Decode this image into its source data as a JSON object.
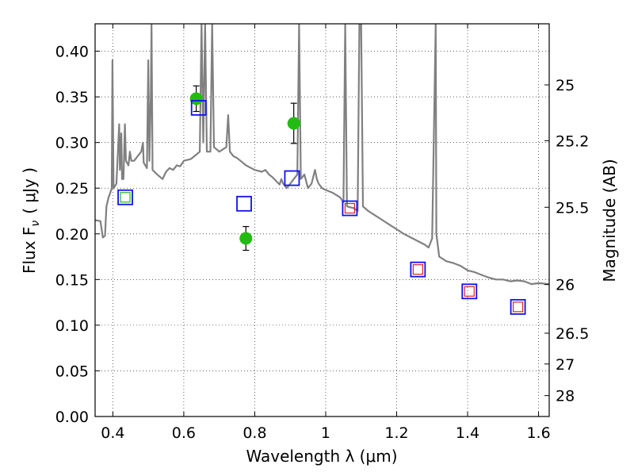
{
  "chart_data": {
    "type": "scatter",
    "xlabel": "Wavelength  λ (μm)",
    "ylabel": "Flux  F",
    "ylabel_subscript": "ν",
    "ylabel_unit": "( μJy )",
    "y2label": "Magnitude (AB)",
    "xlim": [
      0.35,
      1.63
    ],
    "ylim": [
      0.0,
      0.43
    ],
    "x_ticks": [
      0.4,
      0.6,
      0.8,
      1.0,
      1.2,
      1.4,
      1.6
    ],
    "x_tick_labels": [
      "0.4",
      "0.6",
      "0.8",
      "1",
      "1.2",
      "1.4",
      "1.6"
    ],
    "y_ticks": [
      0.0,
      0.05,
      0.1,
      0.15,
      0.2,
      0.25,
      0.3,
      0.35,
      0.4
    ],
    "y_tick_labels": [
      "0.00",
      "0.05",
      "0.10",
      "0.15",
      "0.20",
      "0.25",
      "0.30",
      "0.35",
      "0.40"
    ],
    "y2_ticks": [
      {
        "label": "25",
        "flux": 0.3631
      },
      {
        "label": "25.2",
        "flux": 0.302
      },
      {
        "label": "25.5",
        "flux": 0.2291
      },
      {
        "label": "26",
        "flux": 0.1445
      },
      {
        "label": "26.5",
        "flux": 0.0912
      },
      {
        "label": "27",
        "flux": 0.0575
      },
      {
        "label": "28",
        "flux": 0.0229
      }
    ],
    "grid": true,
    "series": [
      {
        "kind": "line",
        "color": "#808080",
        "points": [
          [
            0.35,
            0.215
          ],
          [
            0.365,
            0.214
          ],
          [
            0.372,
            0.196
          ],
          [
            0.378,
            0.198
          ],
          [
            0.382,
            0.23
          ],
          [
            0.388,
            0.24
          ],
          [
            0.393,
            0.245
          ],
          [
            0.397,
            0.25
          ],
          [
            0.399,
            0.39
          ],
          [
            0.402,
            0.25
          ],
          [
            0.41,
            0.255
          ],
          [
            0.418,
            0.32
          ],
          [
            0.42,
            0.27
          ],
          [
            0.424,
            0.31
          ],
          [
            0.426,
            0.26
          ],
          [
            0.43,
            0.26
          ],
          [
            0.434,
            0.32
          ],
          [
            0.437,
            0.28
          ],
          [
            0.444,
            0.275
          ],
          [
            0.448,
            0.29
          ],
          [
            0.452,
            0.28
          ],
          [
            0.46,
            0.28
          ],
          [
            0.47,
            0.285
          ],
          [
            0.48,
            0.29
          ],
          [
            0.485,
            0.3
          ],
          [
            0.487,
            0.278
          ],
          [
            0.496,
            0.272
          ],
          [
            0.5,
            0.39
          ],
          [
            0.503,
            0.28
          ],
          [
            0.507,
            0.35
          ],
          [
            0.509,
            0.43
          ],
          [
            0.512,
            0.27
          ],
          [
            0.525,
            0.265
          ],
          [
            0.54,
            0.26
          ],
          [
            0.55,
            0.268
          ],
          [
            0.56,
            0.272
          ],
          [
            0.57,
            0.27
          ],
          [
            0.58,
            0.275
          ],
          [
            0.59,
            0.274
          ],
          [
            0.6,
            0.28
          ],
          [
            0.62,
            0.282
          ],
          [
            0.63,
            0.285
          ],
          [
            0.645,
            0.29
          ],
          [
            0.65,
            0.43
          ],
          [
            0.655,
            0.3
          ],
          [
            0.66,
            0.43
          ],
          [
            0.665,
            0.29
          ],
          [
            0.675,
            0.29
          ],
          [
            0.68,
            0.43
          ],
          [
            0.685,
            0.295
          ],
          [
            0.7,
            0.29
          ],
          [
            0.72,
            0.295
          ],
          [
            0.725,
            0.33
          ],
          [
            0.73,
            0.29
          ],
          [
            0.74,
            0.285
          ],
          [
            0.75,
            0.283
          ],
          [
            0.76,
            0.28
          ],
          [
            0.775,
            0.275
          ],
          [
            0.8,
            0.27
          ],
          [
            0.82,
            0.268
          ],
          [
            0.83,
            0.27
          ],
          [
            0.84,
            0.265
          ],
          [
            0.85,
            0.262
          ],
          [
            0.86,
            0.258
          ],
          [
            0.87,
            0.254
          ],
          [
            0.875,
            0.26
          ],
          [
            0.88,
            0.255
          ],
          [
            0.89,
            0.25
          ],
          [
            0.9,
            0.255
          ],
          [
            0.91,
            0.26
          ],
          [
            0.92,
            0.265
          ],
          [
            0.925,
            0.43
          ],
          [
            0.93,
            0.26
          ],
          [
            0.94,
            0.265
          ],
          [
            0.95,
            0.25
          ],
          [
            0.96,
            0.255
          ],
          [
            0.97,
            0.27
          ],
          [
            0.975,
            0.26
          ],
          [
            0.98,
            0.255
          ],
          [
            0.99,
            0.25
          ],
          [
            1.0,
            0.248
          ],
          [
            1.02,
            0.245
          ],
          [
            1.04,
            0.24
          ],
          [
            1.05,
            0.235
          ],
          [
            1.055,
            0.43
          ],
          [
            1.06,
            0.23
          ],
          [
            1.08,
            0.228
          ],
          [
            1.09,
            0.225
          ],
          [
            1.095,
            0.43
          ],
          [
            1.1,
            0.43
          ],
          [
            1.105,
            0.23
          ],
          [
            1.12,
            0.225
          ],
          [
            1.14,
            0.22
          ],
          [
            1.16,
            0.215
          ],
          [
            1.18,
            0.21
          ],
          [
            1.2,
            0.205
          ],
          [
            1.22,
            0.2
          ],
          [
            1.24,
            0.196
          ],
          [
            1.26,
            0.192
          ],
          [
            1.28,
            0.188
          ],
          [
            1.29,
            0.185
          ],
          [
            1.3,
            0.195
          ],
          [
            1.31,
            0.43
          ],
          [
            1.312,
            0.2
          ],
          [
            1.32,
            0.175
          ],
          [
            1.34,
            0.17
          ],
          [
            1.36,
            0.168
          ],
          [
            1.38,
            0.165
          ],
          [
            1.4,
            0.16
          ],
          [
            1.42,
            0.158
          ],
          [
            1.44,
            0.155
          ],
          [
            1.46,
            0.152
          ],
          [
            1.48,
            0.15
          ],
          [
            1.5,
            0.15
          ],
          [
            1.52,
            0.148
          ],
          [
            1.54,
            0.149
          ],
          [
            1.56,
            0.148
          ],
          [
            1.58,
            0.145
          ],
          [
            1.6,
            0.146
          ],
          [
            1.63,
            0.145
          ]
        ]
      },
      {
        "kind": "points",
        "marker": "circle",
        "color": "#22bb11",
        "points": [
          {
            "x": 0.635,
            "y": 0.348,
            "err": 0.014
          },
          {
            "x": 0.775,
            "y": 0.195,
            "err": 0.013
          },
          {
            "x": 0.91,
            "y": 0.321,
            "err": 0.022
          }
        ]
      },
      {
        "kind": "points",
        "marker": "square",
        "color": "#1010ee",
        "points": [
          {
            "x": 0.435,
            "y": 0.24
          },
          {
            "x": 0.642,
            "y": 0.338
          },
          {
            "x": 0.77,
            "y": 0.233
          },
          {
            "x": 0.905,
            "y": 0.261
          },
          {
            "x": 1.068,
            "y": 0.228
          },
          {
            "x": 1.26,
            "y": 0.161
          },
          {
            "x": 1.405,
            "y": 0.137
          },
          {
            "x": 1.542,
            "y": 0.12
          }
        ]
      },
      {
        "kind": "points",
        "marker": "square-small",
        "color": "#22bb11",
        "points": [
          {
            "x": 0.435,
            "y": 0.24
          }
        ]
      },
      {
        "kind": "points",
        "marker": "square-small",
        "color": "#dd2222",
        "points": [
          {
            "x": 1.068,
            "y": 0.228
          },
          {
            "x": 1.26,
            "y": 0.161
          },
          {
            "x": 1.405,
            "y": 0.137
          },
          {
            "x": 1.542,
            "y": 0.12
          }
        ]
      }
    ]
  }
}
